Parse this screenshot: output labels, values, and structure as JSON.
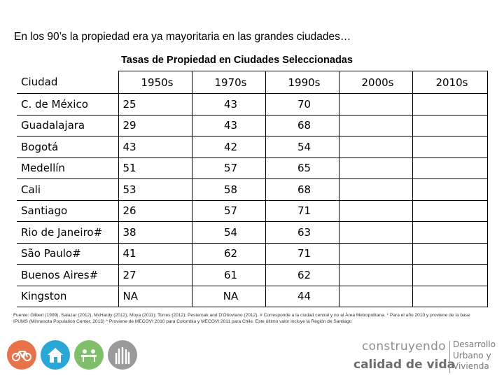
{
  "headline": "En los 90’s la propiedad era ya mayoritaria en las grandes ciudades…",
  "table_title": "Tasas de Propiedad en Ciudades Seleccionadas",
  "table": {
    "headers": [
      "Ciudad",
      "1950s",
      "1970s",
      "1990s",
      "2000s",
      "2010s"
    ],
    "rows": [
      [
        "C. de México",
        "25",
        "43",
        "70",
        "",
        ""
      ],
      [
        "Guadalajara",
        "29",
        "43",
        "68",
        "",
        ""
      ],
      [
        "Bogotá",
        "43",
        "42",
        "54",
        "",
        ""
      ],
      [
        "Medellín",
        "51",
        "57",
        "65",
        "",
        ""
      ],
      [
        "Cali",
        "53",
        "58",
        "68",
        "",
        ""
      ],
      [
        "Santiago",
        "26",
        "57",
        "71",
        "",
        ""
      ],
      [
        "Rio de Janeiro#",
        "38",
        "54",
        "63",
        "",
        ""
      ],
      [
        "São Paulo#",
        "41",
        "62",
        "71",
        "",
        ""
      ],
      [
        "Buenos Aires#",
        "27",
        "61",
        "62",
        "",
        ""
      ],
      [
        "Kingston",
        "NA",
        "NA",
        "44",
        "",
        ""
      ]
    ]
  },
  "source_note": "Fuente: Gilbert (1999), Salazar (2012), McHardy (2012); Moya (2011); Torres (2012); Pesternak and D'Ottoviano (2012). # Corresponde a la ciudad central y no al Área Metropolitana. * Para el año 2010 y proviene de la base IPUMS (Minnesota Population Center, 2013) ^ Proviene de MECOVI 2010 para Colombia y MECOVI 2011 para Chile. Este último valor incluye la Región de Santiago",
  "icons": [
    {
      "name": "bicycle-icon",
      "color": "#e8734a"
    },
    {
      "name": "house-icon",
      "color": "#2aa7d6"
    },
    {
      "name": "community-icon",
      "color": "#7fbf6a"
    },
    {
      "name": "hands-icon",
      "color": "#9a9a9a"
    }
  ],
  "brand": {
    "line1": "construyendo",
    "line2": "calidad de vida",
    "right_lines": [
      "Desarrollo",
      "Urbano y",
      "Vivienda"
    ]
  }
}
